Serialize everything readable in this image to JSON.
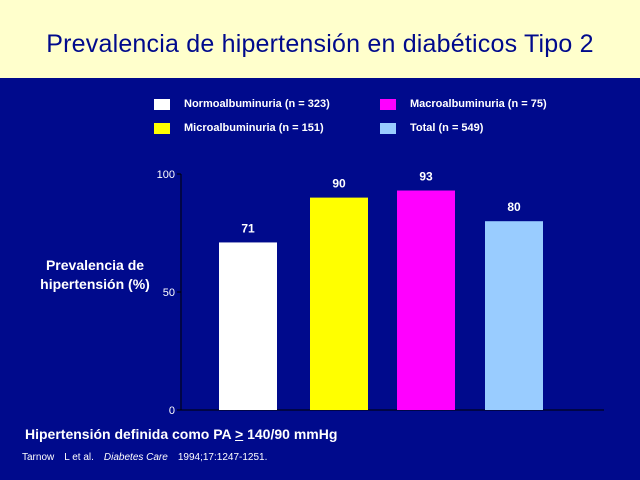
{
  "title": "Prevalencia de hipertensión en diabéticos Tipo 2",
  "legend": [
    {
      "label": "Normoalbuminuria  (n = 323)",
      "color": "#FFFFFF"
    },
    {
      "label": "Macroalbuminuria  (n = 75)",
      "color": "#FF00FF"
    },
    {
      "label": "Microalbuminuria (n = 151)",
      "color": "#FFFF00"
    },
    {
      "label": "Total (n = 549)",
      "color": "#99CCFF"
    }
  ],
  "chart_data": {
    "type": "bar",
    "categories": [
      "Normoalbuminuria  (n = 323)",
      "Microalbuminuria (n = 151)",
      "Macroalbuminuria  (n = 75)",
      "Total (n = 549)"
    ],
    "values": [
      71,
      90,
      93,
      80
    ],
    "colors": [
      "#FFFFFF",
      "#FFFF00",
      "#FF00FF",
      "#99CCFF"
    ],
    "ylabel": "Prevalencia de hipertensión (%)",
    "ylabel_lines": [
      "Prevalencia de",
      "hipertensión (%)"
    ],
    "ylim": [
      0,
      100
    ],
    "yticks": [
      0,
      50,
      100
    ],
    "grid": false,
    "legend_position": "top"
  },
  "footnote": {
    "prefix": "Hipertensión definida como PA ",
    "underlined": ">",
    "suffix": " 140/90 mmHg"
  },
  "citation": {
    "authors": "Tarnow",
    "etal": "L et al.",
    "journal": "Diabetes Care",
    "details": "1994;17:1247-1251."
  }
}
